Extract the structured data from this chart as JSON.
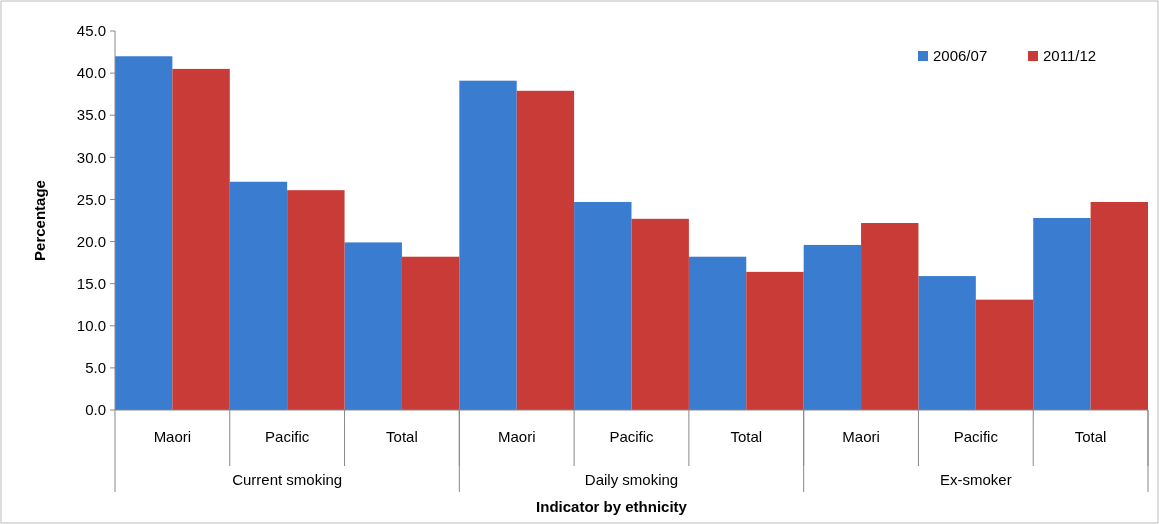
{
  "chart_data": {
    "type": "bar",
    "xlabel": "Indicator  by ethnicity",
    "ylabel": "Percentage",
    "categories": [
      "Maori",
      "Pacific",
      "Total",
      "Maori",
      "Pacific",
      "Total",
      "Maori",
      "Pacific",
      "Total"
    ],
    "annotations": [
      "Current smoking",
      "Daily smoking",
      "Ex-smoker"
    ],
    "series": [
      {
        "name": "2006/07",
        "color": "#3a7dd0",
        "values": [
          42.0,
          27.1,
          19.9,
          39.1,
          24.7,
          18.2,
          19.6,
          15.9,
          22.8
        ]
      },
      {
        "name": "2011/12",
        "color": "#c93b37",
        "values": [
          40.5,
          26.1,
          18.2,
          37.9,
          22.7,
          16.4,
          22.2,
          13.1,
          24.7
        ]
      }
    ],
    "ylim": [
      0,
      45
    ],
    "yticks": [
      {
        "value": 0,
        "label": "0.0"
      },
      {
        "value": 5,
        "label": "5.0"
      },
      {
        "value": 10,
        "label": "10.0"
      },
      {
        "value": 15,
        "label": "15.0"
      },
      {
        "value": 20,
        "label": "20.0"
      },
      {
        "value": 25,
        "label": "25.0"
      },
      {
        "value": 30,
        "label": "30.0"
      },
      {
        "value": 35,
        "label": "35.0"
      },
      {
        "value": 40,
        "label": "40.0"
      },
      {
        "value": 45,
        "label": "45.0"
      }
    ],
    "grid": false,
    "legend": "top right"
  }
}
